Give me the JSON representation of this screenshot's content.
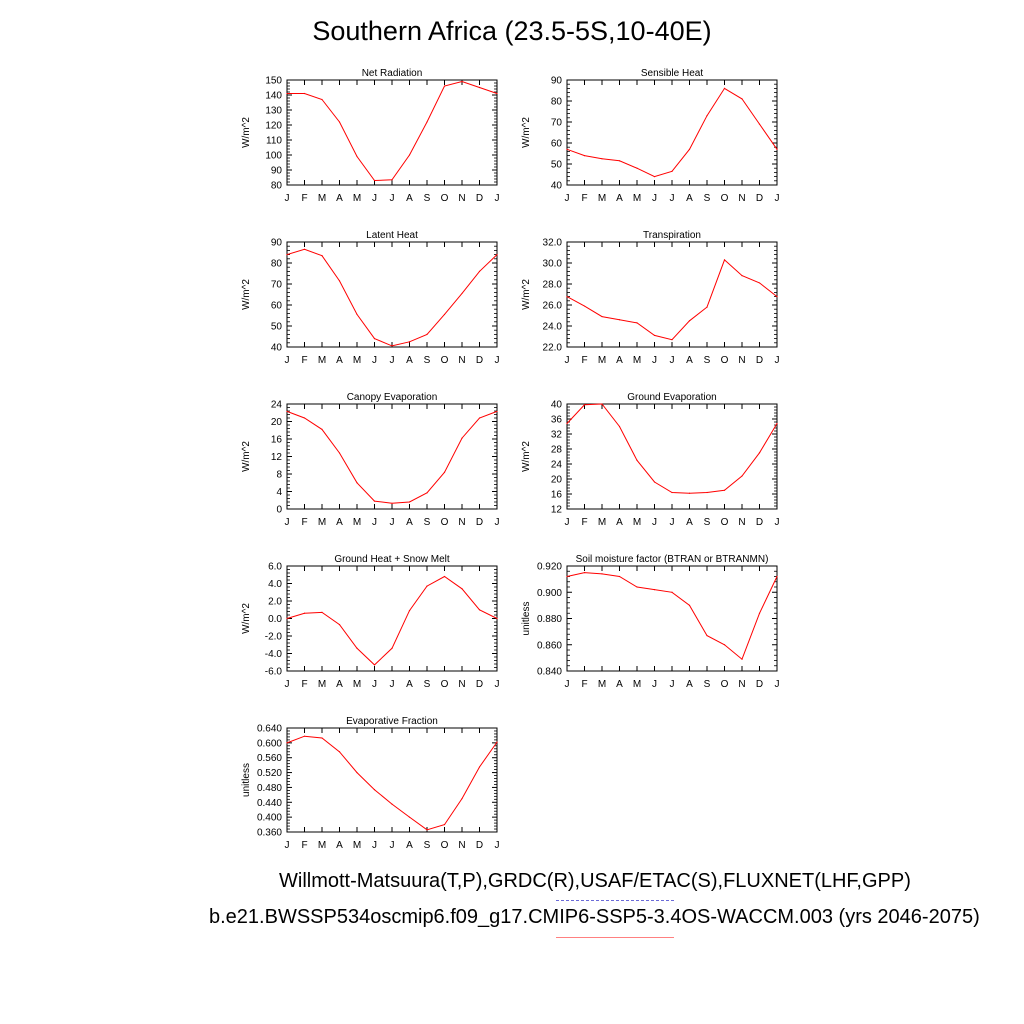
{
  "title": "Southern Africa (23.5-5S,10-40E)",
  "legend": {
    "observations": "Willmott-Matsuura(T,P),GRDC(R),USAF/ETAC(S),FLUXNET(LHF,GPP)",
    "model": "b.e21.BWSSP534oscmip6.f09_g17.CMIP6-SSP5-3.4OS-WACCM.003 (yrs 2046-2075)",
    "observations_line_color": "#6b6bd8",
    "model_line_color": "#ff8080"
  },
  "chart_data": [
    {
      "type": "line",
      "title": "Net Radiation",
      "ylabel": "W/m^2",
      "categories": [
        "J",
        "F",
        "M",
        "A",
        "M",
        "J",
        "J",
        "A",
        "S",
        "O",
        "N",
        "D",
        "J"
      ],
      "ylim": [
        80,
        150
      ],
      "yticks": [
        "80",
        "90",
        "100",
        "110",
        "120",
        "130",
        "140",
        "150"
      ],
      "yticks_values": [
        80,
        90,
        100,
        110,
        120,
        130,
        140,
        150
      ],
      "series": [
        {
          "color": "#ff0000",
          "values": [
            141,
            141,
            137,
            122,
            99,
            83,
            83.5,
            100,
            122,
            146,
            149,
            145,
            141
          ]
        }
      ]
    },
    {
      "type": "line",
      "title": "Sensible Heat",
      "ylabel": "W/m^2",
      "categories": [
        "J",
        "F",
        "M",
        "A",
        "M",
        "J",
        "J",
        "A",
        "S",
        "O",
        "N",
        "D",
        "J"
      ],
      "ylim": [
        40,
        90
      ],
      "yticks": [
        "40",
        "50",
        "60",
        "70",
        "80",
        "90"
      ],
      "yticks_values": [
        40,
        50,
        60,
        70,
        80,
        90
      ],
      "series": [
        {
          "color": "#ff0000",
          "values": [
            57,
            54,
            52.5,
            51.5,
            48,
            44,
            46.5,
            57,
            73,
            86,
            81,
            69,
            57
          ]
        }
      ]
    },
    {
      "type": "line",
      "title": "Latent Heat",
      "ylabel": "W/m^2",
      "categories": [
        "J",
        "F",
        "M",
        "A",
        "M",
        "J",
        "J",
        "A",
        "S",
        "O",
        "N",
        "D",
        "J"
      ],
      "ylim": [
        40,
        90
      ],
      "yticks": [
        "40",
        "50",
        "60",
        "70",
        "80",
        "90"
      ],
      "yticks_values": [
        40,
        50,
        60,
        70,
        80,
        90
      ],
      "series": [
        {
          "color": "#ff0000",
          "values": [
            84,
            86.5,
            83.5,
            71.5,
            55.5,
            44,
            40.5,
            42.5,
            46,
            55.5,
            65.5,
            76,
            84
          ]
        }
      ]
    },
    {
      "type": "line",
      "title": "Transpiration",
      "ylabel": "W/m^2",
      "categories": [
        "J",
        "F",
        "M",
        "A",
        "M",
        "J",
        "J",
        "A",
        "S",
        "O",
        "N",
        "D",
        "J"
      ],
      "ylim": [
        22,
        32
      ],
      "yticks": [
        "22.0",
        "24.0",
        "26.0",
        "28.0",
        "30.0",
        "32.0"
      ],
      "yticks_values": [
        22,
        24,
        26,
        28,
        30,
        32
      ],
      "series": [
        {
          "color": "#ff0000",
          "values": [
            26.8,
            25.9,
            24.9,
            24.6,
            24.3,
            23.1,
            22.7,
            24.5,
            25.8,
            30.3,
            28.8,
            28.1,
            26.8
          ]
        }
      ]
    },
    {
      "type": "line",
      "title": "Canopy Evaporation",
      "ylabel": "W/m^2",
      "categories": [
        "J",
        "F",
        "M",
        "A",
        "M",
        "J",
        "J",
        "A",
        "S",
        "O",
        "N",
        "D",
        "J"
      ],
      "ylim": [
        0,
        24
      ],
      "yticks": [
        "0",
        "4",
        "8",
        "12",
        "16",
        "20",
        "24"
      ],
      "yticks_values": [
        0,
        4,
        8,
        12,
        16,
        20,
        24
      ],
      "series": [
        {
          "color": "#ff0000",
          "values": [
            22.3,
            20.8,
            18.2,
            12.8,
            6,
            1.8,
            1.3,
            1.6,
            3.7,
            8.4,
            16.2,
            20.8,
            22.3
          ]
        }
      ]
    },
    {
      "type": "line",
      "title": "Ground Evaporation",
      "ylabel": "W/m^2",
      "categories": [
        "J",
        "F",
        "M",
        "A",
        "M",
        "J",
        "J",
        "A",
        "S",
        "O",
        "N",
        "D",
        "J"
      ],
      "ylim": [
        12,
        40
      ],
      "yticks": [
        "12",
        "16",
        "20",
        "24",
        "28",
        "32",
        "36",
        "40"
      ],
      "yticks_values": [
        12,
        16,
        20,
        24,
        28,
        32,
        36,
        40
      ],
      "series": [
        {
          "color": "#ff0000",
          "values": [
            34.8,
            39.8,
            40,
            34,
            25,
            19.2,
            16.4,
            16.2,
            16.4,
            17,
            20.8,
            27,
            34.8
          ]
        }
      ]
    },
    {
      "type": "line",
      "title": "Ground Heat + Snow Melt",
      "ylabel": "W/m^2",
      "categories": [
        "J",
        "F",
        "M",
        "A",
        "M",
        "J",
        "J",
        "A",
        "S",
        "O",
        "N",
        "D",
        "J"
      ],
      "ylim": [
        -6,
        6
      ],
      "yticks": [
        "-6.0",
        "-4.0",
        "-2.0",
        "0.0",
        "2.0",
        "4.0",
        "6.0"
      ],
      "yticks_values": [
        -6,
        -4,
        -2,
        0,
        2,
        4,
        6
      ],
      "series": [
        {
          "color": "#ff0000",
          "values": [
            0,
            0.6,
            0.7,
            -0.7,
            -3.4,
            -5.3,
            -3.4,
            0.9,
            3.7,
            4.8,
            3.4,
            1,
            0
          ]
        }
      ]
    },
    {
      "type": "line",
      "title": "Soil moisture factor (BTRAN or BTRANMN)",
      "ylabel": "unitless",
      "categories": [
        "J",
        "F",
        "M",
        "A",
        "M",
        "J",
        "J",
        "A",
        "S",
        "O",
        "N",
        "D",
        "J"
      ],
      "ylim": [
        0.84,
        0.92
      ],
      "yticks": [
        "0.840",
        "0.860",
        "0.880",
        "0.900",
        "0.920"
      ],
      "yticks_values": [
        0.84,
        0.86,
        0.88,
        0.9,
        0.92
      ],
      "series": [
        {
          "color": "#ff0000",
          "values": [
            0.912,
            0.915,
            0.914,
            0.912,
            0.904,
            0.902,
            0.9,
            0.89,
            0.867,
            0.86,
            0.849,
            0.884,
            0.912
          ]
        }
      ]
    },
    {
      "type": "line",
      "title": "Evaporative Fraction",
      "ylabel": "unitless",
      "categories": [
        "J",
        "F",
        "M",
        "A",
        "M",
        "J",
        "J",
        "A",
        "S",
        "O",
        "N",
        "D",
        "J"
      ],
      "ylim": [
        0.36,
        0.64
      ],
      "yticks": [
        "0.360",
        "0.400",
        "0.440",
        "0.480",
        "0.520",
        "0.560",
        "0.600",
        "0.640"
      ],
      "yticks_values": [
        0.36,
        0.4,
        0.44,
        0.48,
        0.52,
        0.56,
        0.6,
        0.64
      ],
      "series": [
        {
          "color": "#ff0000",
          "values": [
            0.6,
            0.618,
            0.613,
            0.576,
            0.52,
            0.474,
            0.435,
            0.4,
            0.366,
            0.38,
            0.45,
            0.535,
            0.602
          ]
        }
      ]
    }
  ]
}
